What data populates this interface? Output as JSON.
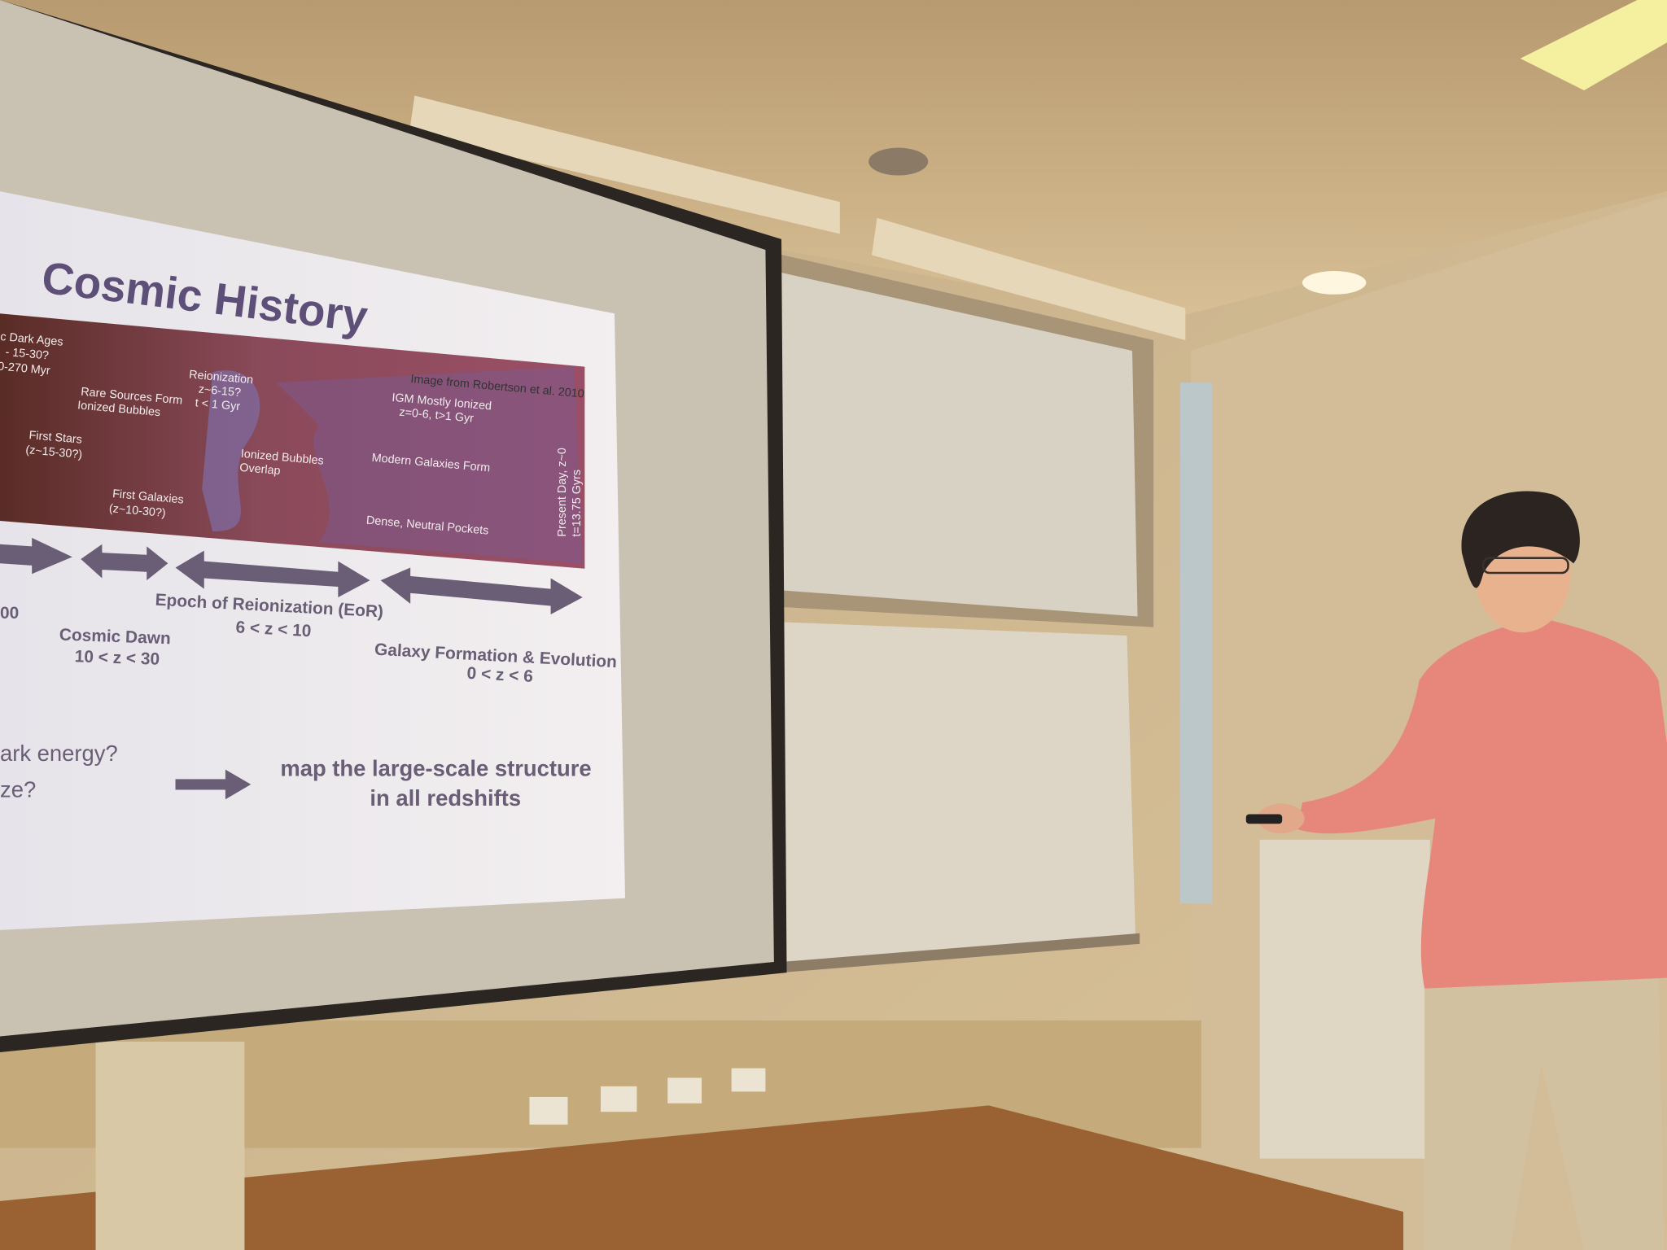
{
  "slide": {
    "title": "Cosmic History",
    "image_labels": {
      "dark_ages": [
        "c Dark Ages",
        "- 15-30?",
        "0-270 Myr"
      ],
      "reionization": [
        "Reionization",
        "z~6-15?",
        "t < 1 Gyr"
      ],
      "credit": "Image from Robertson et al. 2010",
      "rare_sources": [
        "Rare Sources Form",
        "Ionized Bubbles"
      ],
      "igm": [
        "IGM Mostly Ionized",
        "z=0-6,  t>1 Gyr"
      ],
      "first_stars": [
        "First Stars",
        "(z~15-30?)"
      ],
      "bubbles_overlap": [
        "Ionized Bubbles",
        "Overlap"
      ],
      "modern_galaxies": "Modern Galaxies Form",
      "first_galaxies": [
        "First Galaxies",
        "(z~10-30?)"
      ],
      "neutral_pockets": "Dense, Neutral Pockets",
      "present_day": [
        "Present Day, z~0",
        "t=13.75 Gyrs"
      ]
    },
    "timeline": {
      "cut_label": "00",
      "eor": [
        "Epoch of Reionization (EoR)",
        "6 < z < 10"
      ],
      "dawn": [
        "Cosmic Dawn",
        "10 < z  < 30"
      ],
      "galaxy": [
        "Galaxy Formation & Evolution",
        "0 < z < 6"
      ]
    },
    "questions": [
      "ark energy?",
      "ze?"
    ],
    "answer": [
      "map the large-scale structure",
      "in all redshifts"
    ]
  }
}
